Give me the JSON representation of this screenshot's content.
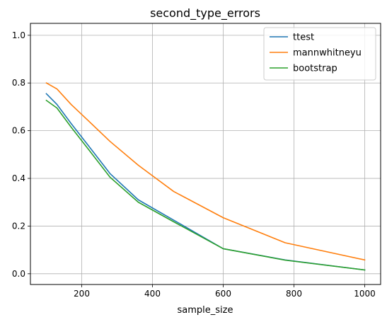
{
  "chart_data": {
    "type": "line",
    "title": "second_type_errors",
    "xlabel": "sample_size",
    "ylabel": "",
    "xlim": [
      55,
      1045
    ],
    "ylim": [
      -0.045,
      1.05
    ],
    "xticks": [
      200,
      400,
      600,
      800,
      1000
    ],
    "xtick_labels": [
      "200",
      "400",
      "600",
      "800",
      "1000"
    ],
    "yticks": [
      0.0,
      0.2,
      0.4,
      0.6,
      0.8,
      1.0
    ],
    "ytick_labels": [
      "0.0",
      "0.2",
      "0.4",
      "0.6",
      "0.8",
      "1.0"
    ],
    "grid": true,
    "legend_position": "top-right",
    "x": [
      100,
      130,
      170,
      220,
      280,
      360,
      460,
      600,
      775,
      1000
    ],
    "series": [
      {
        "name": "ttest",
        "color": "#1f77b4",
        "values": [
          0.755,
          0.71,
          0.63,
          0.535,
          0.42,
          0.31,
          0.225,
          0.105,
          0.058,
          0.016
        ]
      },
      {
        "name": "mannwhitneyu",
        "color": "#ff7f0e",
        "values": [
          0.8,
          0.775,
          0.71,
          0.64,
          0.555,
          0.455,
          0.345,
          0.235,
          0.13,
          0.058
        ]
      },
      {
        "name": "bootstrap",
        "color": "#2ca02c",
        "values": [
          0.727,
          0.695,
          0.615,
          0.52,
          0.405,
          0.3,
          0.218,
          0.105,
          0.057,
          0.016
        ]
      }
    ]
  }
}
